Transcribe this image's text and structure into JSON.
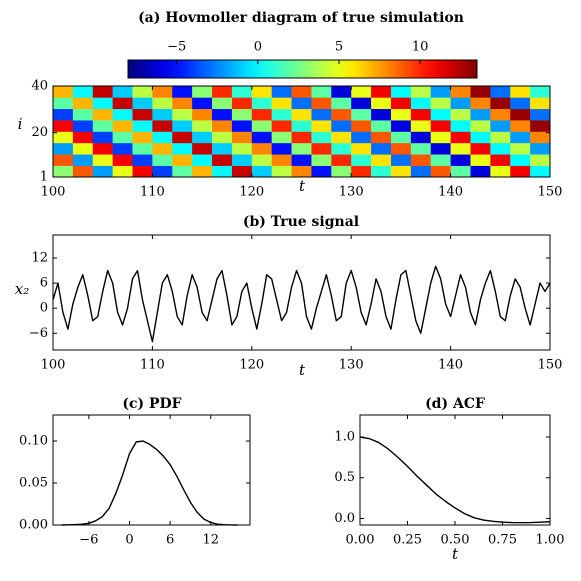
{
  "chart_data": [
    {
      "type": "heatmap",
      "title": "(a) Hovmoller diagram of true simulation",
      "xlabel": "t",
      "ylabel": "i",
      "xlim": [
        100,
        150
      ],
      "ylim": [
        1,
        40
      ],
      "xticks": [
        100,
        110,
        120,
        130,
        140,
        150
      ],
      "yticks": [
        1,
        20,
        40
      ],
      "colormap": "jet",
      "zlim": [
        -8,
        13.5
      ],
      "zticks": [
        {
          "value": -5,
          "label": "−5"
        },
        0,
        5,
        10
      ],
      "values": [
        [
          3,
          9,
          -2,
          5,
          11,
          -4,
          2,
          7,
          0,
          12,
          -1,
          4,
          8,
          -5,
          3,
          10,
          1,
          6,
          -3,
          9,
          2,
          -6,
          5,
          11,
          0
        ],
        [
          9,
          -2,
          5,
          11,
          -4,
          2,
          7,
          0,
          12,
          -1,
          4,
          8,
          -5,
          3,
          10,
          1,
          6,
          -3,
          9,
          2,
          -6,
          5,
          11,
          0,
          4
        ],
        [
          -2,
          5,
          11,
          -4,
          2,
          7,
          0,
          12,
          -1,
          4,
          8,
          -5,
          3,
          10,
          1,
          6,
          -3,
          9,
          2,
          -6,
          5,
          11,
          0,
          4,
          -2
        ],
        [
          5,
          11,
          -4,
          2,
          7,
          0,
          12,
          -1,
          4,
          8,
          -5,
          3,
          10,
          1,
          6,
          -3,
          9,
          2,
          -6,
          5,
          11,
          0,
          4,
          -2,
          8
        ],
        [
          11,
          -4,
          2,
          7,
          0,
          12,
          -1,
          4,
          8,
          -5,
          3,
          10,
          1,
          6,
          -3,
          9,
          2,
          -6,
          5,
          11,
          0,
          4,
          -2,
          8,
          13
        ],
        [
          -4,
          2,
          7,
          0,
          12,
          -1,
          4,
          8,
          -5,
          3,
          10,
          1,
          6,
          -3,
          9,
          2,
          -6,
          5,
          11,
          0,
          4,
          -2,
          8,
          13,
          -3
        ],
        [
          2,
          7,
          0,
          12,
          -1,
          4,
          8,
          -5,
          3,
          10,
          1,
          6,
          -3,
          9,
          2,
          -6,
          5,
          11,
          0,
          4,
          -2,
          8,
          13,
          -3,
          6
        ],
        [
          7,
          0,
          12,
          -1,
          4,
          8,
          -5,
          3,
          10,
          1,
          6,
          -3,
          9,
          2,
          -6,
          5,
          11,
          0,
          4,
          -2,
          8,
          13,
          -3,
          6,
          1
        ]
      ]
    },
    {
      "type": "line",
      "title": "(b) True signal",
      "xlabel": "t",
      "ylabel": "x₂",
      "color": "#000000",
      "xlim": [
        100,
        150
      ],
      "ylim": [
        -10,
        17.5
      ],
      "xticks": [
        100,
        110,
        120,
        130,
        140,
        150
      ],
      "yticks": [
        {
          "value": -6,
          "label": "−6"
        },
        0,
        6,
        12
      ],
      "x": [
        100,
        100.5,
        101,
        101.5,
        102,
        102.5,
        103,
        103.5,
        104,
        104.5,
        105,
        105.5,
        106,
        106.5,
        107,
        107.5,
        108,
        108.5,
        109,
        109.5,
        110,
        110.5,
        111,
        111.5,
        112,
        112.5,
        113,
        113.5,
        114,
        114.5,
        115,
        115.5,
        116,
        116.5,
        117,
        117.5,
        118,
        118.5,
        119,
        119.5,
        120,
        120.5,
        121,
        121.5,
        122,
        122.5,
        123,
        123.5,
        124,
        124.5,
        125,
        125.5,
        126,
        126.5,
        127,
        127.5,
        128,
        128.5,
        129,
        129.5,
        130,
        130.5,
        131,
        131.5,
        132,
        132.5,
        133,
        133.5,
        134,
        134.5,
        135,
        135.5,
        136,
        136.5,
        137,
        137.5,
        138,
        138.5,
        139,
        139.5,
        140,
        140.5,
        141,
        141.5,
        142,
        142.5,
        143,
        143.5,
        144,
        144.5,
        145,
        145.5,
        146,
        146.5,
        147,
        147.5,
        148,
        148.5,
        149,
        149.5,
        150
      ],
      "values": [
        2,
        6,
        -1,
        -5,
        1,
        5,
        8,
        3,
        -3,
        -2,
        4,
        9,
        6,
        -1,
        -4,
        0,
        7,
        9,
        2,
        -3,
        -8,
        -1,
        6,
        8,
        4,
        -2,
        -4,
        3,
        8,
        5,
        -1,
        -3,
        2,
        7,
        9,
        3,
        -4,
        -2,
        4,
        6,
        0,
        -5,
        1,
        8,
        7,
        2,
        -3,
        -1,
        5,
        9,
        6,
        -2,
        -5,
        0,
        4,
        8,
        3,
        -3,
        -2,
        6,
        9,
        5,
        -1,
        -4,
        1,
        7,
        4,
        -2,
        -5,
        2,
        8,
        9,
        3,
        -3,
        -6,
        0,
        6,
        10,
        7,
        1,
        -2,
        3,
        8,
        5,
        -1,
        -4,
        2,
        6,
        9,
        4,
        -2,
        -3,
        3,
        7,
        5,
        0,
        -4,
        1,
        6,
        4,
        6
      ]
    },
    {
      "type": "line",
      "title": "(c) PDF",
      "color": "#000000",
      "xlim": [
        -11.3,
        17.8
      ],
      "ylim": [
        0,
        0.131
      ],
      "xticks": [
        {
          "value": -6,
          "label": "−6"
        },
        0,
        6,
        12
      ],
      "yticks": [
        {
          "value": 0,
          "label": "0.00"
        },
        {
          "value": 0.05,
          "label": "0.05"
        },
        {
          "value": 0.1,
          "label": "0.10"
        }
      ],
      "x": [
        -10,
        -9,
        -8,
        -7,
        -6,
        -5,
        -4,
        -3,
        -2,
        -1,
        0,
        1,
        2,
        3,
        4,
        5,
        6,
        7,
        8,
        9,
        10,
        11,
        12,
        13,
        14,
        15,
        16
      ],
      "values": [
        0,
        0.0002,
        0.0005,
        0.001,
        0.002,
        0.005,
        0.01,
        0.02,
        0.038,
        0.06,
        0.085,
        0.099,
        0.1,
        0.096,
        0.09,
        0.082,
        0.072,
        0.058,
        0.042,
        0.027,
        0.015,
        0.007,
        0.003,
        0.001,
        0.0004,
        0.0001,
        0
      ]
    },
    {
      "type": "line",
      "title": "(d) ACF",
      "xlabel": "t",
      "color": "#000000",
      "xlim": [
        0,
        1
      ],
      "ylim": [
        -0.08,
        1.27
      ],
      "xticks": [
        {
          "value": 0,
          "label": "0.00"
        },
        {
          "value": 0.25,
          "label": "0.25"
        },
        {
          "value": 0.5,
          "label": "0.50"
        },
        {
          "value": 0.75,
          "label": "0.75"
        },
        {
          "value": 1,
          "label": "1.00"
        }
      ],
      "yticks": [
        {
          "value": 0,
          "label": "0.0"
        },
        {
          "value": 0.5,
          "label": "0.5"
        },
        {
          "value": 1,
          "label": "1.0"
        }
      ],
      "x": [
        0,
        0.05,
        0.1,
        0.15,
        0.2,
        0.25,
        0.3,
        0.35,
        0.4,
        0.45,
        0.5,
        0.55,
        0.6,
        0.65,
        0.7,
        0.75,
        0.8,
        0.85,
        0.9,
        0.95,
        1
      ],
      "values": [
        1,
        0.98,
        0.93,
        0.85,
        0.75,
        0.64,
        0.52,
        0.41,
        0.3,
        0.21,
        0.13,
        0.06,
        0.01,
        -0.02,
        -0.035,
        -0.045,
        -0.05,
        -0.052,
        -0.05,
        -0.045,
        -0.04
      ]
    }
  ]
}
